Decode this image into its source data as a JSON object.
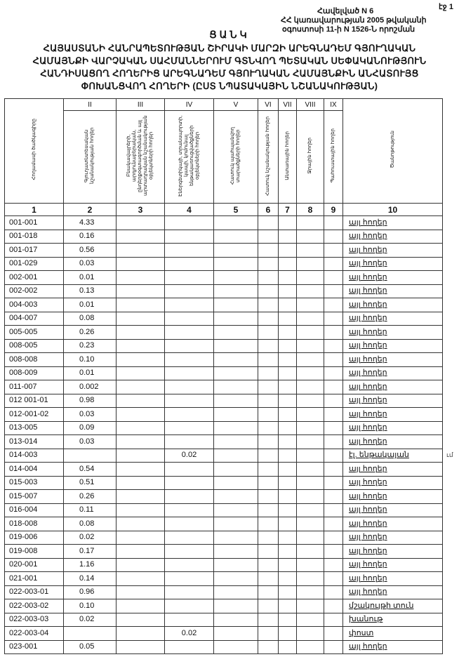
{
  "page_label": "էջ 1",
  "annex": {
    "line1": "Հավելված N 6",
    "line2": "ՀՀ կառավարության 2005 թվականի",
    "line3": "օգոստոսի 11-ի N 1526-Ն որոշման"
  },
  "title": "ՑԱՆԿ",
  "subtitle_lines": [
    "ՀԱՅԱՍՏԱՆԻ ՀԱՆՐԱՊԵՏՈՒԹՅԱՆ ՇԻՐԱԿԻ ՄԱՐԶԻ ԱՐԵԳՆԱԴԵՄ ԳՅՈՒՂԱԿԱՆ",
    "ՀԱՄԱՅՆՔԻ ՎԱՐՉԱԿԱՆ ՍԱՀՄԱՆՆԵՐՈՒՄ ԳՏՆՎՈՂ ՊԵՏԱԿԱՆ ՍԵՓԱԿԱՆՈՒԹՅՈՒՆ",
    "ՀԱՆԴԻՍԱՑՈՂ ՀՈՂԵՐԻՑ ԱՐԵԳՆԱԴԵՄ ԳՅՈՒՂԱԿԱՆ ՀԱՄԱՅՆՔԻՆ ԱՆՀԱՏՈՒՅՑ",
    "ՓՈԽԱՆՑՎՈՂ ՀՈՂԵՐԻ (ԸՍՏ ՆՊԱՏԱԿԱՅԻՆ ՆՇԱՆԱԿՈՒԹՅԱՆ)"
  ],
  "table": {
    "roman": [
      "",
      "II",
      "III",
      "IV",
      "V",
      "VI",
      "VII",
      "VIII",
      "IX",
      ""
    ],
    "headers": [
      "Հողամասի ծածկագիրը",
      "Գյուղատնտեսական նշանակության հողեր",
      "Բնակավայրերի, արդյունաբերական, ընդերքօգտագործման և այլ արտադրական նշանակության օբյեկտների հողեր",
      "Էներգետիկայի, տրանսպորտի, կապի, կոմունալ ենթակառուցվածքների օբյեկտների հողեր",
      "Հատուկ պահպանվող տարածքների հողեր",
      "Հատուկ նշանակության հողեր",
      "Անտառային հողեր",
      "Ջրային հողեր",
      "Պահուստային հողեր",
      "Ծանոթություն"
    ],
    "numbers": [
      "1",
      "2",
      "3",
      "4",
      "5",
      "6",
      "7",
      "8",
      "9",
      "10"
    ],
    "rows": [
      {
        "code": "001-001",
        "c2": "4.33",
        "c4": "",
        "note": "այլ հողեր"
      },
      {
        "code": "001-018",
        "c2": "0.16",
        "c4": "",
        "note": "այլ հողեր"
      },
      {
        "code": "001-017",
        "c2": "0.56",
        "c4": "",
        "note": "այլ հողեր"
      },
      {
        "code": "001-029",
        "c2": "0.03",
        "c4": "",
        "note": "այլ հողեր"
      },
      {
        "code": "002-001",
        "c2": "0.01",
        "c4": "",
        "note": "այլ հողեր"
      },
      {
        "code": "002-002",
        "c2": "0.13",
        "c4": "",
        "note": "այլ հողեր"
      },
      {
        "code": "004-003",
        "c2": "0.01",
        "c4": "",
        "note": "այլ հողեր"
      },
      {
        "code": "004-007",
        "c2": "0.08",
        "c4": "",
        "note": "այլ հողեր"
      },
      {
        "code": "005-005",
        "c2": "0.26",
        "c4": "",
        "note": "այլ հողեր"
      },
      {
        "code": "008-005",
        "c2": "0.23",
        "c4": "",
        "note": "այլ հողեր"
      },
      {
        "code": "008-008",
        "c2": "0.10",
        "c4": "",
        "note": "այլ հողեր"
      },
      {
        "code": "008-009",
        "c2": "0.01",
        "c4": "",
        "note": "այլ հողեր"
      },
      {
        "code": "011-007",
        "c2": "0.002",
        "c4": "",
        "note": "այլ հողեր"
      },
      {
        "code": "012 001-01",
        "c2": "0.98",
        "c4": "",
        "note": "այլ հողեր"
      },
      {
        "code": "012-001-02",
        "c2": "0.03",
        "c4": "",
        "note": "այլ հողեր"
      },
      {
        "code": "013-005",
        "c2": "0.09",
        "c4": "",
        "note": "այլ հողեր"
      },
      {
        "code": "013-014",
        "c2": "0.03",
        "c4": "",
        "note": "այլ հողեր"
      },
      {
        "code": "014-003",
        "c2": "",
        "c4": "0.02",
        "note": "էլ. ենթակայան"
      },
      {
        "code": "014-004",
        "c2": "0.54",
        "c4": "",
        "note": "այլ հողեր"
      },
      {
        "code": "015-003",
        "c2": "0.51",
        "c4": "",
        "note": "այլ հողեր"
      },
      {
        "code": "015-007",
        "c2": "0.26",
        "c4": "",
        "note": "այլ հողեր"
      },
      {
        "code": "016-004",
        "c2": "0.11",
        "c4": "",
        "note": "այլ հողեր"
      },
      {
        "code": "018-008",
        "c2": "0.08",
        "c4": "",
        "note": "այլ հողեր"
      },
      {
        "code": "019-006",
        "c2": "0.02",
        "c4": "",
        "note": "այլ հողեր"
      },
      {
        "code": "019-008",
        "c2": "0.17",
        "c4": "",
        "note": "այլ հողեր"
      },
      {
        "code": "020-001",
        "c2": "1.16",
        "c4": "",
        "note": "այլ հողեր"
      },
      {
        "code": "021-001",
        "c2": "0.14",
        "c4": "",
        "note": "այլ հողեր"
      },
      {
        "code": "022-003-01",
        "c2": "0.96",
        "c4": "",
        "note": "այլ հողեր"
      },
      {
        "code": "022-003-02",
        "c2": "0.10",
        "c4": "",
        "note": "մշակույթի տուն"
      },
      {
        "code": "022-003-03",
        "c2": "0.02",
        "c4": "",
        "note": "խանութ"
      },
      {
        "code": "022-003-04",
        "c2": "",
        "c4": "0.02",
        "note": "փոստ"
      },
      {
        "code": "023-001",
        "c2": "0.05",
        "c4": "",
        "note": "այլ հողեր"
      }
    ]
  },
  "margin_mark": "ւմ"
}
